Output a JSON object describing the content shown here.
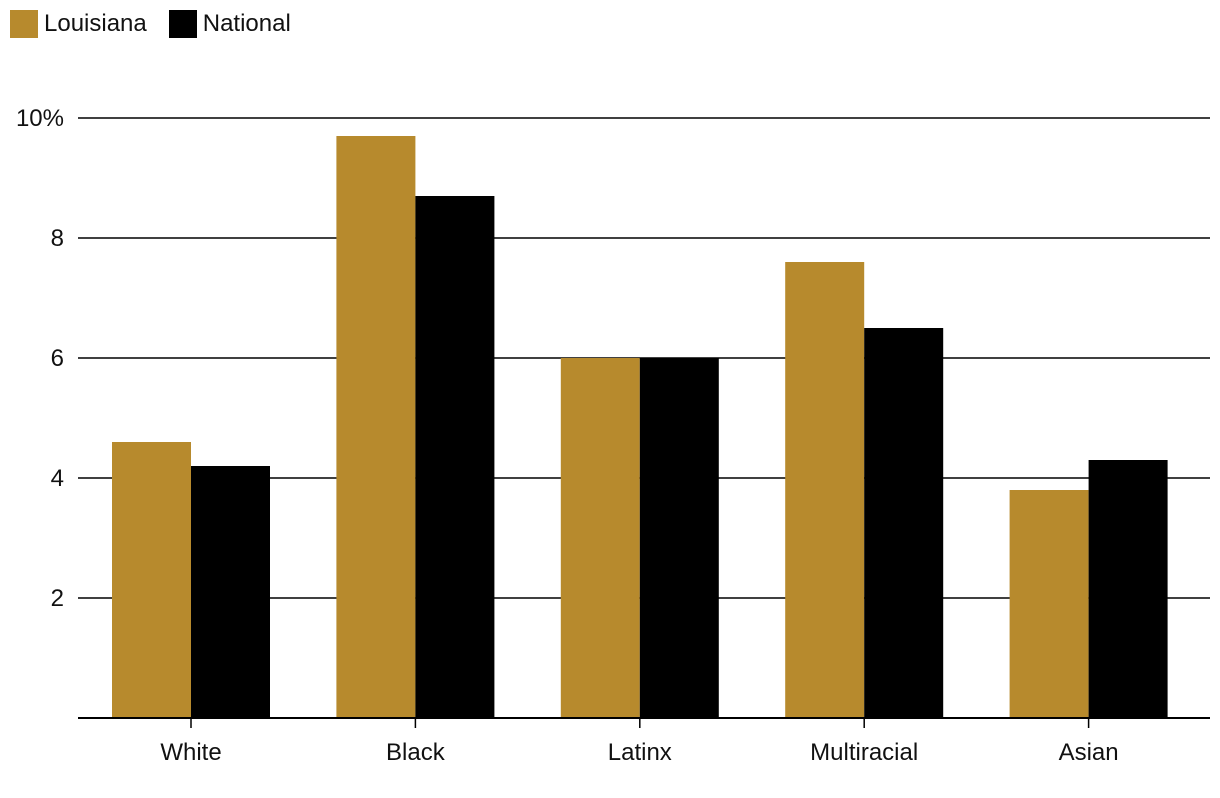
{
  "colors": {
    "louisiana": "#b78a2d",
    "national": "#000000",
    "grid": "#000000"
  },
  "legend": [
    {
      "label": "Louisiana",
      "color": "#b78a2d"
    },
    {
      "label": "National",
      "color": "#000000"
    }
  ],
  "chart_data": {
    "type": "bar",
    "categories": [
      "White",
      "Black",
      "Latinx",
      "Multiracial",
      "Asian"
    ],
    "series": [
      {
        "name": "Louisiana",
        "values": [
          4.6,
          9.7,
          6.0,
          7.6,
          3.8
        ]
      },
      {
        "name": "National",
        "values": [
          4.2,
          8.7,
          6.0,
          6.5,
          4.3
        ]
      }
    ],
    "yticks": [
      {
        "value": 2,
        "label": "2"
      },
      {
        "value": 4,
        "label": "4"
      },
      {
        "value": 6,
        "label": "6"
      },
      {
        "value": 8,
        "label": "8"
      },
      {
        "value": 10,
        "label": "10%"
      }
    ],
    "ylim": [
      0,
      10
    ],
    "grid": true,
    "legend_position": "top-left",
    "xlabel": "",
    "ylabel": "",
    "title": ""
  }
}
